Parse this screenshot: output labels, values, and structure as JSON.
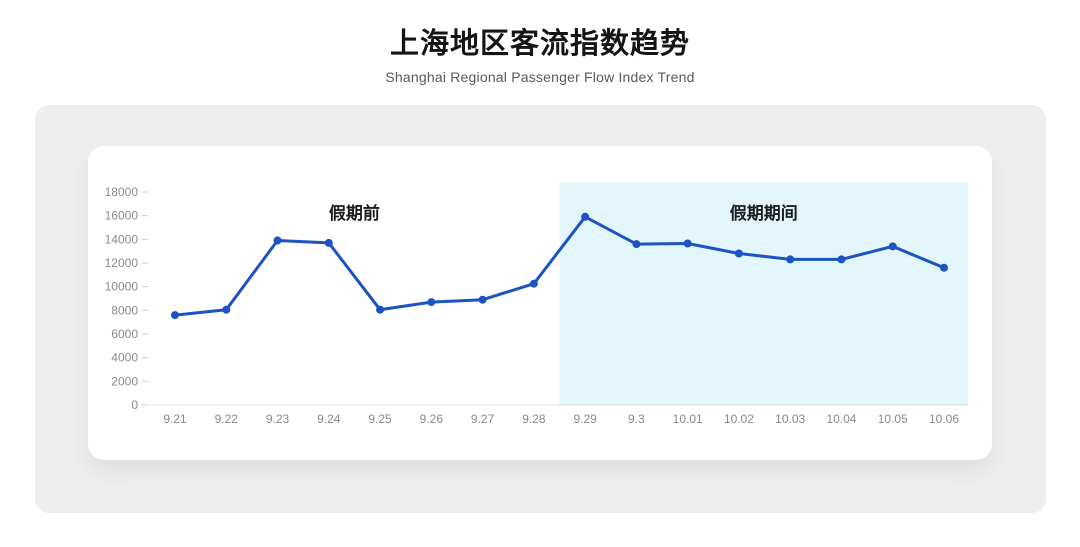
{
  "chart_data": {
    "type": "line",
    "title": "上海地区客流指数趋势",
    "subtitle": "Shanghai Regional Passenger Flow Index Trend",
    "categories": [
      "9.21",
      "9.22",
      "9.23",
      "9.24",
      "9.25",
      "9.26",
      "9.27",
      "9.28",
      "9.29",
      "9.3",
      "10.01",
      "10.02",
      "10.03",
      "10.04",
      "10.05",
      "10.06"
    ],
    "values": [
      7600,
      8050,
      13900,
      13700,
      8050,
      8700,
      8900,
      10250,
      15900,
      13600,
      13650,
      12800,
      12300,
      12300,
      13400,
      11600
    ],
    "xlabel": "",
    "ylabel": "",
    "ylim": [
      0,
      18000
    ],
    "yticks": [
      0,
      2000,
      4000,
      6000,
      8000,
      10000,
      12000,
      14000,
      16000,
      18000
    ],
    "grid": false,
    "legend": "none",
    "line_color": "#1d52c3",
    "point_color": "#1d52c3",
    "axis_line_color": "#e0e0e0",
    "tick_color": "#cccccc",
    "axis_label_color": "#8a8a8a",
    "regions": [
      {
        "name": "pre-holiday",
        "label": "假期前",
        "start": "9.21",
        "end": "9.28",
        "background": null
      },
      {
        "name": "holiday",
        "label": "假期期间",
        "start": "9.29",
        "end": "10.06",
        "background": "#e2f6fc"
      }
    ]
  },
  "panel": {
    "background": "#eeeeee",
    "card_background": "#ffffff"
  }
}
